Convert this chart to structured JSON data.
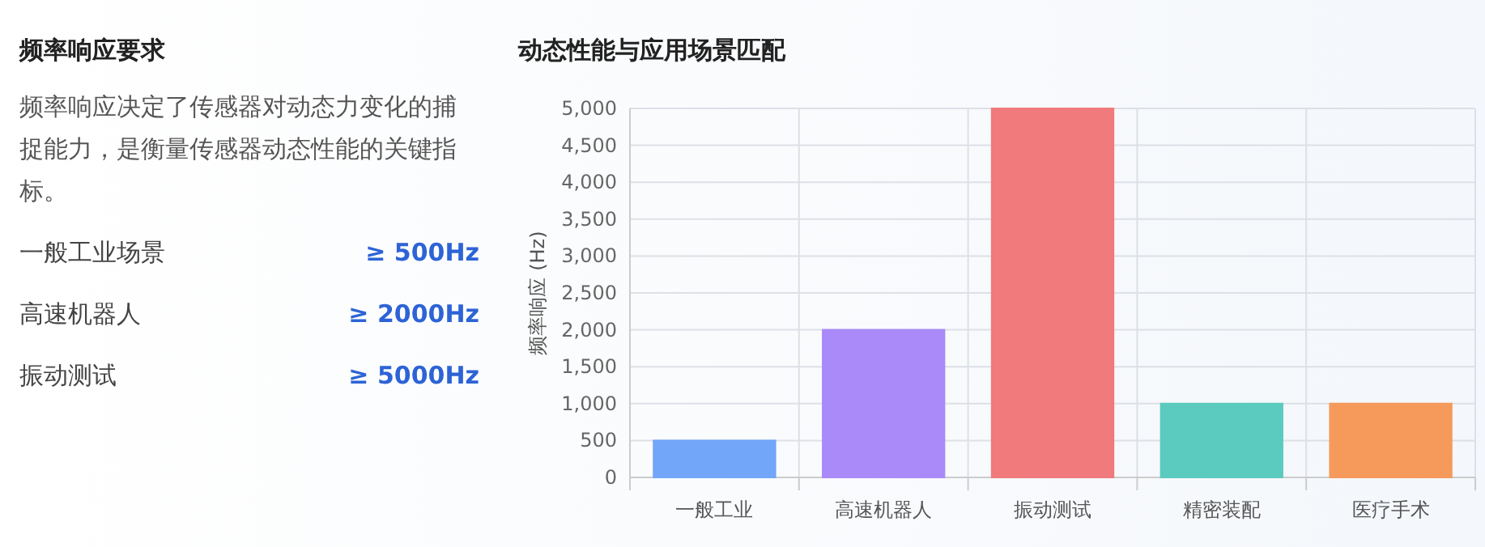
{
  "chart_data": [
    {
      "type": "other",
      "title": "频率响应要求",
      "subtitle": "频率响应决定了传感器对动态力变化的捕捉能力，是衡量传感器动态性能的关键指标。",
      "categories": [
        "一般工业场景",
        "高速机器人",
        "振动测试"
      ],
      "values": [
        500,
        2000,
        5000
      ],
      "value_labels": [
        "≥ 500Hz",
        "≥ 2000Hz",
        "≥ 5000Hz"
      ]
    },
    {
      "type": "bar",
      "title": "动态性能与应用场景匹配",
      "ylabel": "频率响应 (Hz)",
      "categories": [
        "一般工业",
        "高速机器人",
        "振动测试",
        "精密装配",
        "医疗手术"
      ],
      "values": [
        500,
        2000,
        5000,
        1000,
        1000
      ],
      "colors": [
        "#72a6f8",
        "#a98af8",
        "#f07a7c",
        "#5ccbbf",
        "#f59a5a"
      ],
      "ylim": [
        0,
        5000
      ],
      "yticks": [
        0,
        500,
        {
          "value": 1000,
          "label": "1,000"
        },
        {
          "value": 1500,
          "label": "1,500"
        },
        {
          "value": 2000,
          "label": "2,000"
        },
        {
          "value": 2500,
          "label": "2,500"
        },
        {
          "value": 3000,
          "label": "3,000"
        },
        {
          "value": 3500,
          "label": "3,500"
        },
        {
          "value": 4000,
          "label": "4,000"
        },
        {
          "value": 4500,
          "label": "4,500"
        },
        {
          "value": 5000,
          "label": "5,000"
        }
      ],
      "grid": true
    }
  ]
}
